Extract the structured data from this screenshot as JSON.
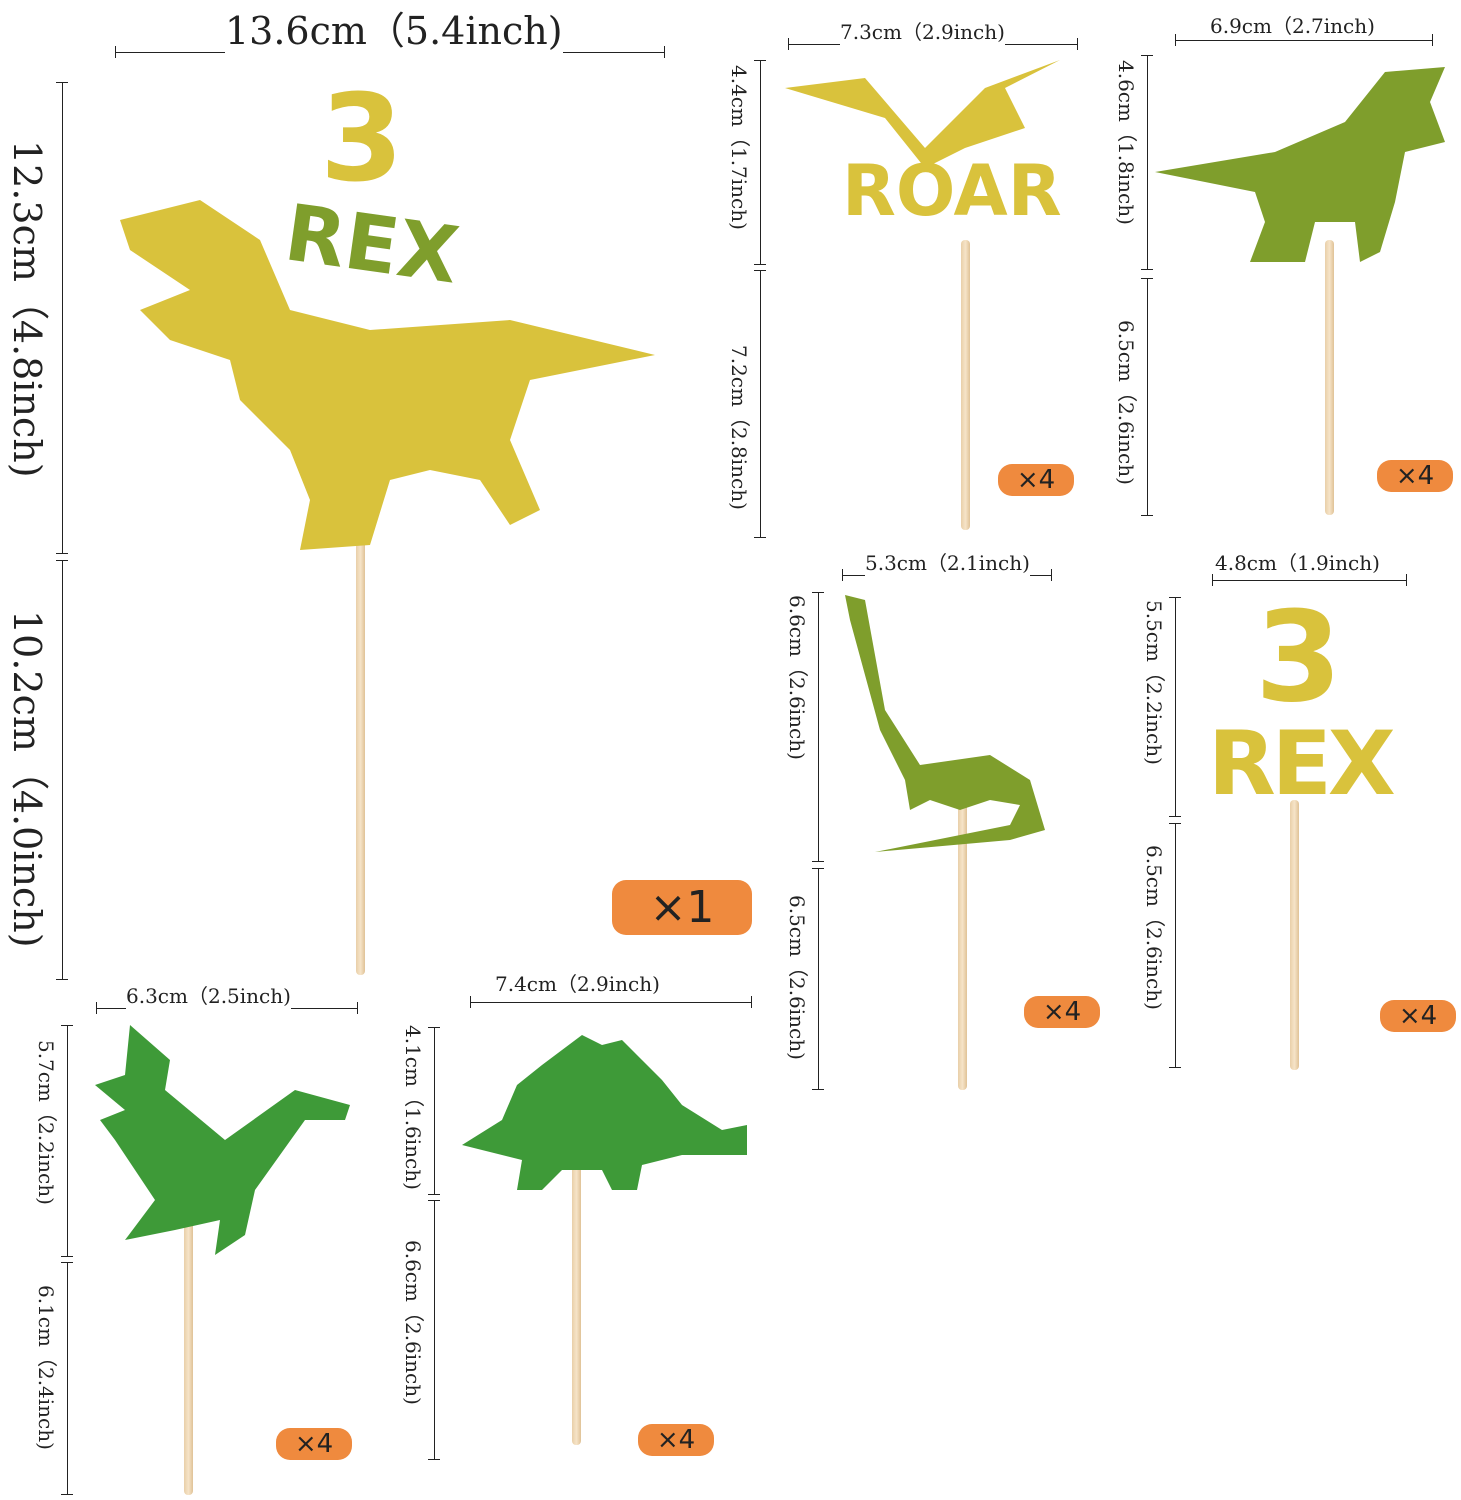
{
  "colors": {
    "gold": "#d9c23c",
    "olive": "#7f9e2c",
    "green": "#3e9a38",
    "badge": "#ef8a3e",
    "stick": "#ecd3ae"
  },
  "main": {
    "width": "13.6cm（5.4inch)",
    "topper_height": "12.3cm（4.8inch)",
    "stick_height": "10.2cm（4.0inch)",
    "qty": "×1",
    "lettering": {
      "number": "3",
      "word": "REX"
    }
  },
  "roar": {
    "width": "7.3cm（2.9inch)",
    "topper_height": "4.4cm（1.7inch)",
    "stick_height": "7.2cm（2.8inch)",
    "qty": "×4",
    "lettering": "ROAR"
  },
  "trex": {
    "width": "6.9cm（2.7inch)",
    "topper_height": "4.6cm（1.8inch)",
    "stick_height": "6.5cm（2.6inch)",
    "qty": "×4"
  },
  "brachio": {
    "width": "5.3cm（2.1inch)",
    "topper_height": "6.6cm（2.6inch)",
    "stick_height": "6.5cm（2.6inch)",
    "qty": "×4"
  },
  "rex3": {
    "width": "4.8cm（1.9inch)",
    "topper_height": "5.5cm（2.2inch)",
    "stick_height": "6.5cm（2.6inch)",
    "qty": "×4",
    "lettering": {
      "number": "3",
      "word": "REX"
    }
  },
  "raptor": {
    "width": "6.3cm（2.5inch)",
    "topper_height": "5.7cm（2.2inch)",
    "stick_height": "6.1cm（2.4inch)",
    "qty": "×4"
  },
  "stego": {
    "width": "7.4cm（2.9inch)",
    "topper_height": "4.1cm（1.6inch)",
    "stick_height": "6.6cm（2.6inch)",
    "qty": "×4"
  }
}
